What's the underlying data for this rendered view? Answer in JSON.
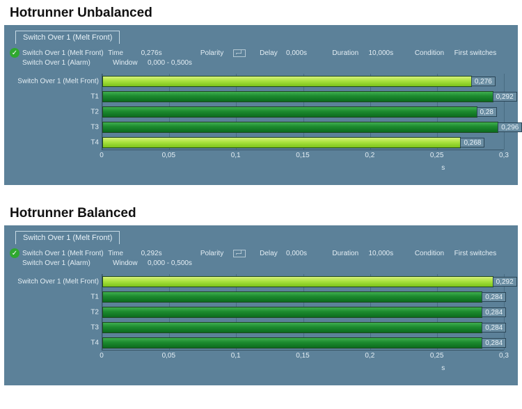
{
  "charts": [
    {
      "section_title": "Hotrunner Unbalanced",
      "tab_label": "Switch Over 1 (Melt Front)",
      "status1": {
        "name": "Switch Over 1 (Melt Front)",
        "time_label": "Time",
        "time_value": "0,276s",
        "polarity_label": "Polarity",
        "delay_label": "Delay",
        "delay_value": "0,000s",
        "duration_label": "Duration",
        "duration_value": "10,000s",
        "condition_label": "Condition",
        "condition_value": "First switches"
      },
      "status2": {
        "name": "Switch Over 1 (Alarm)",
        "window_label": "Window",
        "window_value": "0,000 - 0,500s"
      },
      "x_axis": {
        "min": 0,
        "max": 0.3,
        "ticks": [
          {
            "pos": 0,
            "label": "0"
          },
          {
            "pos": 0.05,
            "label": "0,05"
          },
          {
            "pos": 0.1,
            "label": "0,1"
          },
          {
            "pos": 0.15,
            "label": "0,15"
          },
          {
            "pos": 0.2,
            "label": "0,2"
          },
          {
            "pos": 0.25,
            "label": "0,25"
          },
          {
            "pos": 0.3,
            "label": "0,3"
          }
        ],
        "unit": "s"
      },
      "bars": [
        {
          "label": "Switch Over 1 (Melt Front)",
          "value": 0.276,
          "value_text": "0,276",
          "color": "light"
        },
        {
          "label": "T1",
          "value": 0.292,
          "value_text": "0,292",
          "color": "dark"
        },
        {
          "label": "T2",
          "value": 0.28,
          "value_text": "0,28",
          "color": "dark"
        },
        {
          "label": "T3",
          "value": 0.296,
          "value_text": "0,296",
          "color": "dark"
        },
        {
          "label": "T4",
          "value": 0.268,
          "value_text": "0,268",
          "color": "light"
        }
      ],
      "colors": {
        "panel_bg": "#5c8199",
        "grid": "#486b82",
        "text": "#e4eef4",
        "bar_light_top": "#d6f07a",
        "bar_light_bot": "#7cc31a",
        "bar_dark_top": "#3fae4f",
        "bar_dark_bot": "#0c6b1e",
        "zero_line": "#b43232"
      }
    },
    {
      "section_title": "Hotrunner Balanced",
      "tab_label": "Switch Over 1 (Melt Front)",
      "status1": {
        "name": "Switch Over 1 (Melt Front)",
        "time_label": "Time",
        "time_value": "0,292s",
        "polarity_label": "Polarity",
        "delay_label": "Delay",
        "delay_value": "0,000s",
        "duration_label": "Duration",
        "duration_value": "10,000s",
        "condition_label": "Condition",
        "condition_value": "First switches"
      },
      "status2": {
        "name": "Switch Over 1 (Alarm)",
        "window_label": "Window",
        "window_value": "0,000 - 0,500s"
      },
      "x_axis": {
        "min": 0,
        "max": 0.3,
        "ticks": [
          {
            "pos": 0,
            "label": "0"
          },
          {
            "pos": 0.05,
            "label": "0,05"
          },
          {
            "pos": 0.1,
            "label": "0,1"
          },
          {
            "pos": 0.15,
            "label": "0,15"
          },
          {
            "pos": 0.2,
            "label": "0,2"
          },
          {
            "pos": 0.25,
            "label": "0,25"
          },
          {
            "pos": 0.3,
            "label": "0,3"
          }
        ],
        "unit": "s"
      },
      "bars": [
        {
          "label": "Switch Over 1 (Melt Front)",
          "value": 0.292,
          "value_text": "0,292",
          "color": "light"
        },
        {
          "label": "T1",
          "value": 0.284,
          "value_text": "0,284",
          "color": "dark"
        },
        {
          "label": "T2",
          "value": 0.284,
          "value_text": "0,284",
          "color": "dark"
        },
        {
          "label": "T3",
          "value": 0.284,
          "value_text": "0,284",
          "color": "dark"
        },
        {
          "label": "T4",
          "value": 0.284,
          "value_text": "0,284",
          "color": "dark"
        }
      ],
      "colors": {
        "panel_bg": "#5c8199",
        "grid": "#486b82",
        "text": "#e4eef4",
        "bar_light_top": "#d6f07a",
        "bar_light_bot": "#7cc31a",
        "bar_dark_top": "#3fae4f",
        "bar_dark_bot": "#0c6b1e",
        "zero_line": "#b43232"
      }
    }
  ]
}
